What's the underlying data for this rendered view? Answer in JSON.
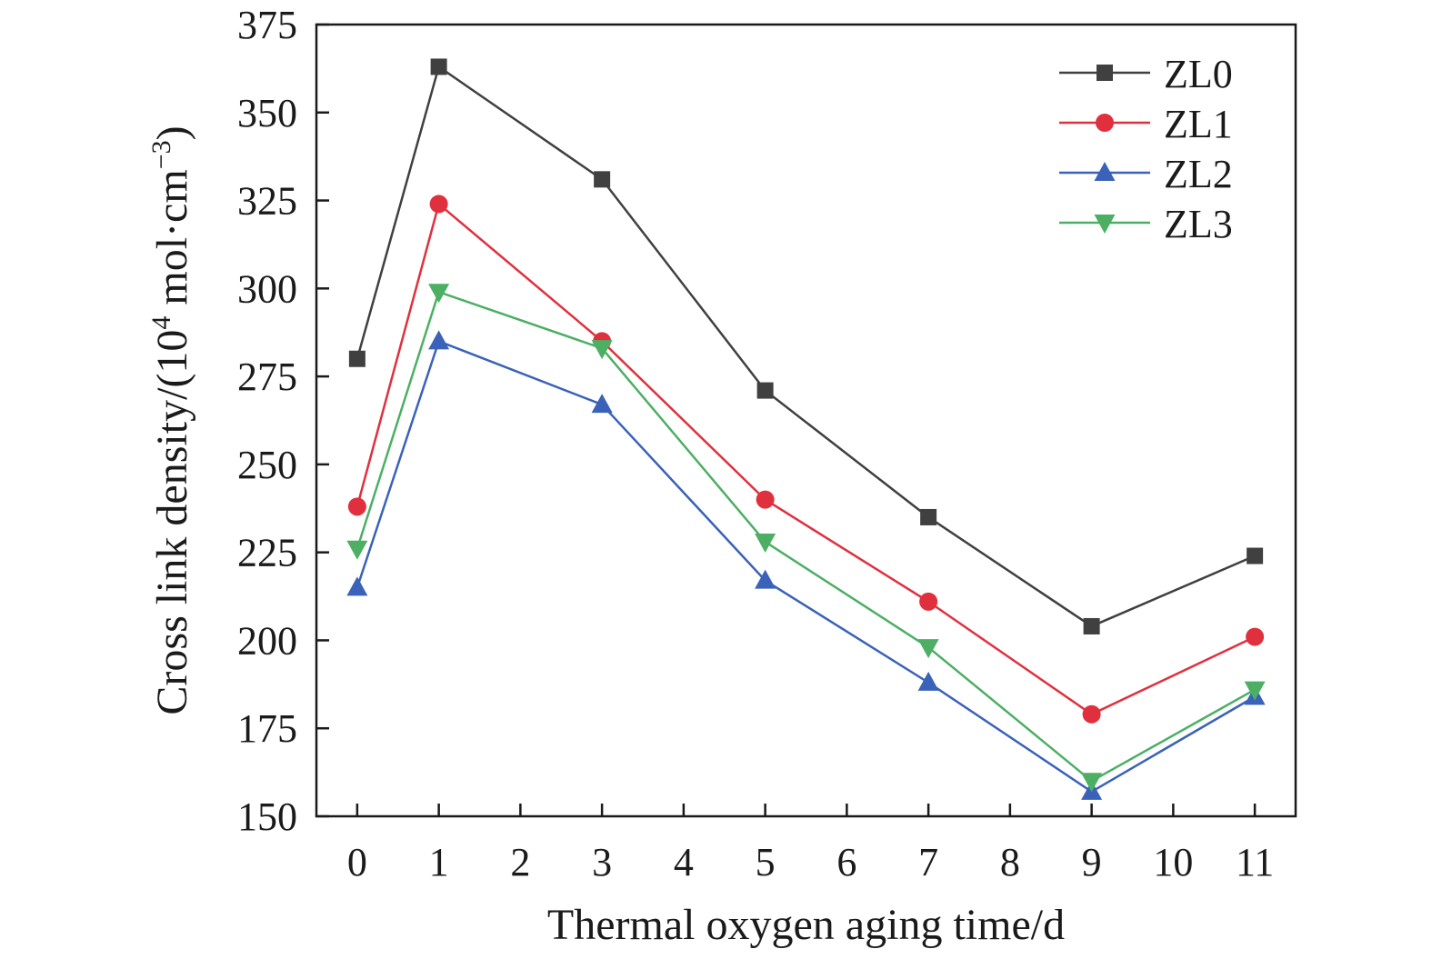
{
  "chart_data": {
    "type": "line",
    "title": "",
    "xlabel": "Thermal oxygen aging time/d",
    "ylabel": {
      "prefix": "Cross link density/(10",
      "exp": "4",
      "mid": " mol·cm",
      "exp2": "−3",
      "suffix": ")"
    },
    "xlim": [
      -0.5,
      11.5
    ],
    "ylim": [
      150,
      375
    ],
    "xticks": [
      0,
      1,
      2,
      3,
      4,
      5,
      6,
      7,
      8,
      9,
      10,
      11
    ],
    "yticks": [
      150,
      175,
      200,
      225,
      250,
      275,
      300,
      325,
      350,
      375
    ],
    "grid": false,
    "legend_position": "top-right",
    "x": [
      0,
      1,
      3,
      5,
      7,
      9,
      11
    ],
    "series": [
      {
        "name": "ZL0",
        "color": "#404040",
        "marker": "square",
        "values": [
          280,
          363,
          331,
          271,
          235,
          204,
          224
        ]
      },
      {
        "name": "ZL1",
        "color": "#e0303e",
        "marker": "circle",
        "values": [
          238,
          324,
          285,
          240,
          211,
          179,
          201
        ]
      },
      {
        "name": "ZL2",
        "color": "#3a62b8",
        "marker": "triangle-up",
        "values": [
          215,
          285,
          267,
          217,
          188,
          157,
          184
        ]
      },
      {
        "name": "ZL3",
        "color": "#4caf64",
        "marker": "triangle-down",
        "values": [
          226,
          299,
          283,
          228,
          198,
          160,
          186
        ]
      }
    ]
  }
}
